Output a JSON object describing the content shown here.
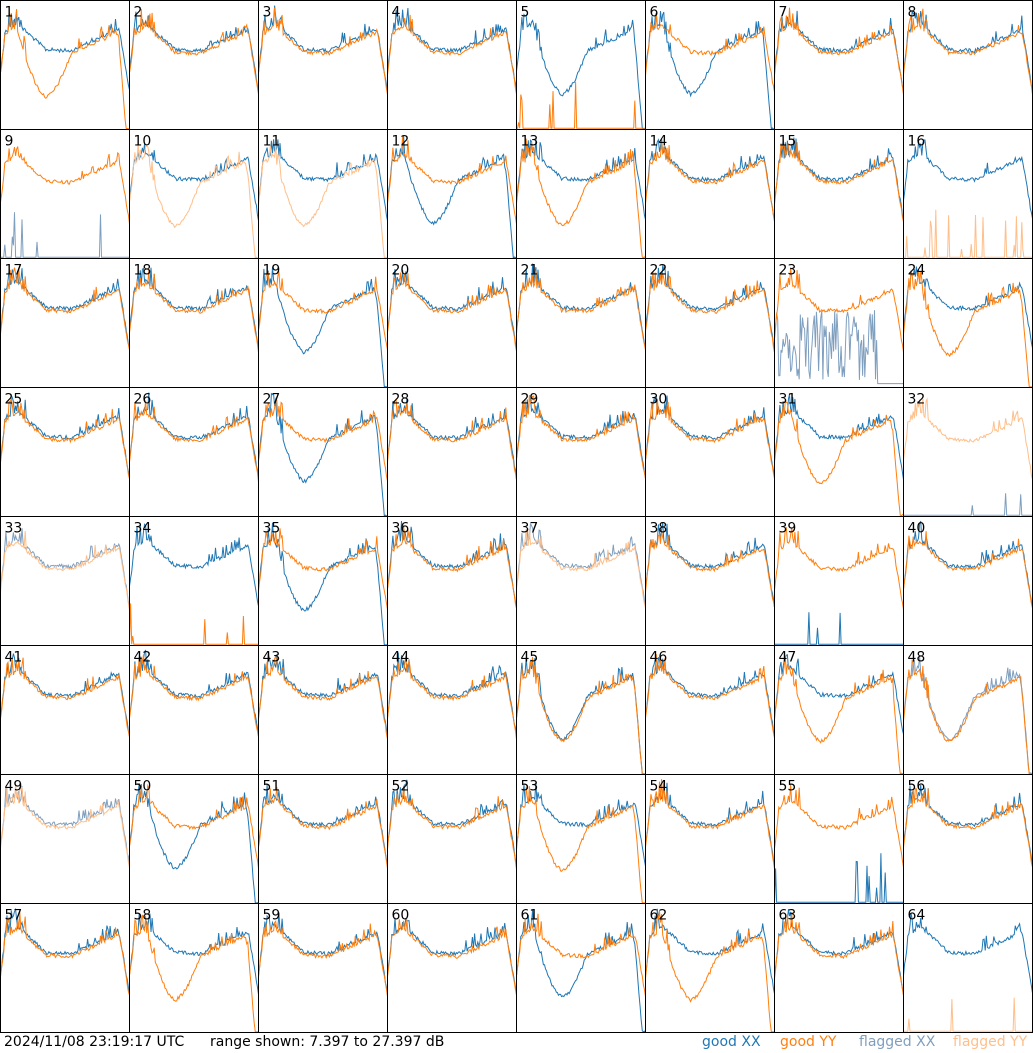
{
  "chart_data": {
    "type": "line",
    "title": "",
    "grid_rows": 8,
    "grid_cols": 8,
    "panel_labels": [
      "1",
      "2",
      "3",
      "4",
      "5",
      "6",
      "7",
      "8",
      "9",
      "10",
      "11",
      "12",
      "13",
      "14",
      "15",
      "16",
      "17",
      "18",
      "19",
      "20",
      "21",
      "22",
      "23",
      "24",
      "25",
      "26",
      "27",
      "28",
      "29",
      "30",
      "31",
      "32",
      "33",
      "34",
      "35",
      "36",
      "37",
      "38",
      "39",
      "40",
      "41",
      "42",
      "43",
      "44",
      "45",
      "46",
      "47",
      "48",
      "49",
      "50",
      "51",
      "52",
      "53",
      "54",
      "55",
      "56",
      "57",
      "58",
      "59",
      "60",
      "61",
      "62",
      "63",
      "64"
    ],
    "y_range_db": [
      7.397,
      27.397
    ],
    "colors": {
      "good_xx": "#1f77b4",
      "good_yy": "#ff7f0e",
      "flagged_xx": "#7f9fbf",
      "flagged_yy": "#ffbf8a"
    },
    "series_styles": {
      "1": {
        "xx": "good",
        "yy": "good",
        "xx_shape": "normal",
        "yy_shape": "dip"
      },
      "5": {
        "xx": "good",
        "yy": "good",
        "xx_shape": "dip",
        "yy_shape": "dead"
      },
      "6": {
        "xx": "good",
        "yy": "good",
        "xx_shape": "dip",
        "yy_shape": "normal"
      },
      "9": {
        "xx": "flagged",
        "yy": "good",
        "xx_shape": "dead",
        "yy_shape": "normal"
      },
      "10": {
        "xx": "good",
        "yy": "flagged",
        "xx_shape": "normal",
        "yy_shape": "dip"
      },
      "11": {
        "xx": "good",
        "yy": "flagged",
        "xx_shape": "normal",
        "yy_shape": "dip"
      },
      "12": {
        "xx": "good",
        "yy": "good",
        "xx_shape": "dip",
        "yy_shape": "normal"
      },
      "13": {
        "xx": "good",
        "yy": "good",
        "xx_shape": "normal",
        "yy_shape": "dip"
      },
      "16": {
        "xx": "good",
        "yy": "flagged",
        "xx_shape": "normal",
        "yy_shape": "dead"
      },
      "19": {
        "xx": "good",
        "yy": "good",
        "xx_shape": "dip",
        "yy_shape": "normal"
      },
      "23": {
        "xx": "flagged",
        "yy": "good",
        "xx_shape": "noisy",
        "yy_shape": "normal"
      },
      "24": {
        "xx": "good",
        "yy": "good",
        "xx_shape": "normal",
        "yy_shape": "dip"
      },
      "27": {
        "xx": "good",
        "yy": "good",
        "xx_shape": "dip",
        "yy_shape": "normal"
      },
      "31": {
        "xx": "good",
        "yy": "good",
        "xx_shape": "normal",
        "yy_shape": "dip"
      },
      "32": {
        "xx": "flagged",
        "yy": "flagged",
        "xx_shape": "dead",
        "yy_shape": "normal"
      },
      "33": {
        "xx": "flagged",
        "yy": "flagged",
        "xx_shape": "normal",
        "yy_shape": "normal"
      },
      "34": {
        "xx": "good",
        "yy": "good",
        "xx_shape": "normal",
        "yy_shape": "dead"
      },
      "35": {
        "xx": "good",
        "yy": "good",
        "xx_shape": "dip",
        "yy_shape": "normal"
      },
      "37": {
        "xx": "flagged",
        "yy": "flagged",
        "xx_shape": "normal",
        "yy_shape": "normal"
      },
      "39": {
        "xx": "good",
        "yy": "good",
        "xx_shape": "dead",
        "yy_shape": "normal"
      },
      "45": {
        "xx": "good",
        "yy": "good",
        "xx_shape": "dip",
        "yy_shape": "dip"
      },
      "47": {
        "xx": "good",
        "yy": "good",
        "xx_shape": "normal",
        "yy_shape": "dip"
      },
      "48": {
        "xx": "flagged",
        "yy": "good",
        "xx_shape": "dip",
        "yy_shape": "dip"
      },
      "49": {
        "xx": "flagged",
        "yy": "flagged",
        "xx_shape": "normal",
        "yy_shape": "normal"
      },
      "50": {
        "xx": "good",
        "yy": "good",
        "xx_shape": "dip",
        "yy_shape": "normal"
      },
      "53": {
        "xx": "good",
        "yy": "good",
        "xx_shape": "normal",
        "yy_shape": "dip"
      },
      "55": {
        "xx": "good",
        "yy": "good",
        "xx_shape": "dead",
        "yy_shape": "normal"
      },
      "58": {
        "xx": "good",
        "yy": "good",
        "xx_shape": "normal",
        "yy_shape": "dip"
      },
      "61": {
        "xx": "good",
        "yy": "good",
        "xx_shape": "dip",
        "yy_shape": "normal"
      },
      "62": {
        "xx": "good",
        "yy": "good",
        "xx_shape": "normal",
        "yy_shape": "dip"
      },
      "64": {
        "xx": "good",
        "yy": "flagged",
        "xx_shape": "normal",
        "yy_shape": "dead"
      }
    }
  },
  "footer": {
    "timestamp": "2024/11/08 23:19:17 UTC",
    "range_text": "range shown: 7.397 to 27.397 dB",
    "legend_good_xx": "good XX",
    "legend_good_yy": "good YY",
    "legend_flagged_xx": "flagged XX",
    "legend_flagged_yy": "flagged YY"
  }
}
